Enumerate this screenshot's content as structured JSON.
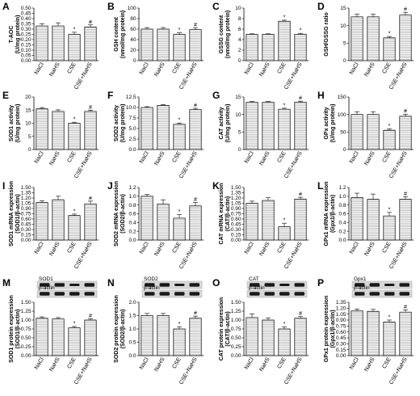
{
  "chart_data": [
    {
      "type": "bar",
      "letter": "A",
      "ylabel": [
        "T-AOC",
        "(U/mg protein)"
      ],
      "categories": [
        "NaCl",
        "NaHS",
        "CSE",
        "CSE+NaHS"
      ],
      "values": [
        0.33,
        0.33,
        0.25,
        0.32
      ],
      "errors": [
        0.02,
        0.03,
        0.02,
        0.02
      ],
      "sig": [
        "",
        "",
        "*",
        "#"
      ],
      "ylim": [
        0,
        0.5
      ],
      "ticks": [
        "0.00",
        "0.05",
        "0.10",
        "0.15",
        "0.20",
        "0.25",
        "0.30",
        "0.35",
        "0.40",
        "0.45",
        "0.50"
      ]
    },
    {
      "type": "bar",
      "letter": "B",
      "ylabel": [
        "GSH content",
        "(nmol/mg protein)"
      ],
      "categories": [
        "NaCl",
        "NaHS",
        "CSE",
        "CSE+NaHS"
      ],
      "values": [
        60,
        60,
        50,
        59
      ],
      "errors": [
        3,
        3,
        3,
        3
      ],
      "sig": [
        "",
        "",
        "*",
        "#"
      ],
      "ylim": [
        0,
        100
      ],
      "ticks": [
        "0",
        "20",
        "40",
        "60",
        "80",
        "100"
      ]
    },
    {
      "type": "bar",
      "letter": "C",
      "ylabel": [
        "GSSG content",
        "(nmol/mg protein)"
      ],
      "categories": [
        "NaCl",
        "NaHS",
        "CSE",
        "CSE+NaHS"
      ],
      "values": [
        5,
        5,
        7.5,
        5
      ],
      "errors": [
        0.1,
        0.1,
        0.2,
        0.2
      ],
      "sig": [
        "",
        "",
        "*",
        "*"
      ],
      "ylim": [
        0,
        10
      ],
      "ticks": [
        "0",
        "2",
        "4",
        "6",
        "8",
        "10"
      ]
    },
    {
      "type": "bar",
      "letter": "D",
      "ylabel": [
        "GSH/GSSG ratio"
      ],
      "categories": [
        "NaCl",
        "NaHS",
        "CSE",
        "CSE+NaHS"
      ],
      "values": [
        12.5,
        12.5,
        6.5,
        13
      ],
      "errors": [
        0.8,
        0.8,
        0.4,
        0.8
      ],
      "sig": [
        "",
        "",
        "*",
        "#"
      ],
      "ylim": [
        0,
        15
      ],
      "ticks": [
        "0",
        "5",
        "10",
        "15"
      ]
    },
    {
      "type": "bar",
      "letter": "E",
      "ylabel": [
        "SOD1 activity",
        "(U/mg protein)"
      ],
      "categories": [
        "NaCl",
        "NaHS",
        "CSE",
        "CSE+NaHS"
      ],
      "values": [
        15.5,
        14.5,
        10,
        14.5
      ],
      "errors": [
        0.5,
        0.6,
        0.4,
        0.5
      ],
      "sig": [
        "",
        "",
        "*",
        "#"
      ],
      "ylim": [
        0,
        20
      ],
      "ticks": [
        "0",
        "5",
        "10",
        "15",
        "20"
      ]
    },
    {
      "type": "bar",
      "letter": "F",
      "ylabel": [
        "SOD2 activity",
        "(U/mg protein)"
      ],
      "categories": [
        "NaCl",
        "NaHS",
        "CSE",
        "CSE+NaHS"
      ],
      "values": [
        10,
        10.5,
        6,
        9.5
      ],
      "errors": [
        0.2,
        0.2,
        0.3,
        0.3
      ],
      "sig": [
        "",
        "",
        "*",
        "#"
      ],
      "ylim": [
        0,
        12.5
      ],
      "ticks": [
        "0.0",
        "2.5",
        "5.0",
        "7.5",
        "10.0",
        "12.5"
      ]
    },
    {
      "type": "bar",
      "letter": "G",
      "ylabel": [
        "CAT activity",
        "(U/mg protein)"
      ],
      "categories": [
        "NaCl",
        "NaHS",
        "CSE",
        "CSE+NaHS"
      ],
      "values": [
        13.5,
        13.5,
        11.5,
        13.5
      ],
      "errors": [
        0.2,
        0.2,
        0.3,
        0.3
      ],
      "sig": [
        "",
        "",
        "*",
        "#"
      ],
      "ylim": [
        0,
        15
      ],
      "ticks": [
        "0",
        "5",
        "10",
        "15"
      ]
    },
    {
      "type": "bar",
      "letter": "H",
      "ylabel": [
        "GPx activity",
        "(U/mg protein)"
      ],
      "categories": [
        "NaCl",
        "NaHS",
        "CSE",
        "CSE+NaHS"
      ],
      "values": [
        100,
        100,
        55,
        95
      ],
      "errors": [
        8,
        8,
        4,
        6
      ],
      "sig": [
        "",
        "",
        "*",
        "#"
      ],
      "ylim": [
        0,
        150
      ],
      "ticks": [
        "0",
        "50",
        "100",
        "150"
      ]
    },
    {
      "type": "bar",
      "letter": "I",
      "ylabel": [
        "SOD1 mRNA expression",
        "(SOD1/β-actin)"
      ],
      "categories": [
        "NaCl",
        "NaHS",
        "CSE",
        "CSE+NaHS"
      ],
      "values": [
        1.07,
        1.15,
        0.7,
        1.03
      ],
      "errors": [
        0.05,
        0.1,
        0.04,
        0.08
      ],
      "sig": [
        "",
        "",
        "*",
        "#"
      ],
      "ylim": [
        0,
        1.5
      ],
      "ticks": [
        "0.00",
        "0.15",
        "0.30",
        "0.45",
        "0.60",
        "0.75",
        "0.90",
        "1.05",
        "1.20",
        "1.35",
        "1.50"
      ]
    },
    {
      "type": "bar",
      "letter": "J",
      "ylabel": [
        "SOD2 mRNA expression",
        "(SOD2/β-actin)"
      ],
      "categories": [
        "NaCl",
        "NaHS",
        "CSE",
        "CSE+NaHS"
      ],
      "values": [
        1.0,
        0.82,
        0.5,
        0.78
      ],
      "errors": [
        0.04,
        0.1,
        0.08,
        0.08
      ],
      "sig": [
        "",
        "",
        "*",
        "#"
      ],
      "ylim": [
        0,
        1.2
      ],
      "ticks": [
        "0.0",
        "0.2",
        "0.4",
        "0.6",
        "0.8",
        "1.0",
        "1.2"
      ]
    },
    {
      "type": "bar",
      "letter": "K",
      "ylabel": [
        "CAT mRNA expression",
        "(CAT/β-actin)"
      ],
      "categories": [
        "NaCl",
        "NaHS",
        "CSE",
        "CSE+NaHS"
      ],
      "values": [
        1.05,
        1.13,
        0.38,
        1.17
      ],
      "errors": [
        0.06,
        0.08,
        0.1,
        0.05
      ],
      "sig": [
        "",
        "",
        "*",
        "#"
      ],
      "ylim": [
        0,
        1.5
      ],
      "ticks": [
        "0.00",
        "0.15",
        "0.30",
        "0.45",
        "0.60",
        "0.75",
        "0.90",
        "1.05",
        "1.20",
        "1.35",
        "1.50"
      ]
    },
    {
      "type": "bar",
      "letter": "L",
      "ylabel": [
        "GPx1 mRNA expression",
        "(Gpx1/β-actin)"
      ],
      "categories": [
        "NaCl",
        "NaHS",
        "CSE",
        "CSE+NaHS"
      ],
      "values": [
        0.97,
        0.93,
        0.55,
        0.93
      ],
      "errors": [
        0.1,
        0.12,
        0.08,
        0.06
      ],
      "sig": [
        "",
        "",
        "*",
        "#"
      ],
      "ylim": [
        0,
        1.2
      ],
      "ticks": [
        "0.0",
        "0.2",
        "0.4",
        "0.6",
        "0.8",
        "1.0",
        "1.2"
      ]
    },
    {
      "type": "bar",
      "letter": "M",
      "ylabel": [
        "SOD1 protein expression",
        "(SOD1/β-actin)"
      ],
      "blot": [
        "SOD1",
        "β-actin"
      ],
      "categories": [
        "NaCl",
        "NaHS",
        "CSE",
        "CSE+NaHS"
      ],
      "values": [
        1.05,
        1.03,
        0.78,
        1.0
      ],
      "errors": [
        0.04,
        0.04,
        0.04,
        0.03
      ],
      "sig": [
        "",
        "",
        "*",
        "#"
      ],
      "ylim": [
        0,
        1.5
      ],
      "ticks": [
        "0.00",
        "0.25",
        "0.50",
        "0.75",
        "1.00",
        "1.25",
        "1.50"
      ]
    },
    {
      "type": "bar",
      "letter": "N",
      "ylabel": [
        "SOD2 protein expression",
        "(SOD2/β-actin)"
      ],
      "blot": [
        "SOD2",
        "β-actin"
      ],
      "categories": [
        "NaCl",
        "NaHS",
        "CSE",
        "CSE+NaHS"
      ],
      "values": [
        1.5,
        1.5,
        1.0,
        1.4
      ],
      "errors": [
        0.08,
        0.08,
        0.08,
        0.08
      ],
      "sig": [
        "",
        "",
        "*",
        "#"
      ],
      "ylim": [
        0,
        2.0
      ],
      "ticks": [
        "0.0",
        "0.5",
        "1.0",
        "1.5",
        "2.0"
      ]
    },
    {
      "type": "bar",
      "letter": "O",
      "ylabel": [
        "CAT protein expression",
        "(CAT/β-actin)"
      ],
      "blot": [
        "CAT",
        "β-actin"
      ],
      "categories": [
        "NaCl",
        "NaHS",
        "CSE",
        "CSE+NaHS"
      ],
      "values": [
        1.07,
        1.0,
        0.75,
        1.05
      ],
      "errors": [
        0.1,
        0.06,
        0.06,
        0.05
      ],
      "sig": [
        "",
        "",
        "*",
        "#"
      ],
      "ylim": [
        0,
        1.5
      ],
      "ticks": [
        "0.00",
        "0.25",
        "0.50",
        "0.75",
        "1.00",
        "1.25",
        "1.50"
      ]
    },
    {
      "type": "bar",
      "letter": "P",
      "ylabel": [
        "GPx1 protein expression",
        "(Gpx1/β-actin)"
      ],
      "blot": [
        "Gpx1",
        "β-actin"
      ],
      "categories": [
        "NaCl",
        "NaHS",
        "CSE",
        "CSE+NaHS"
      ],
      "values": [
        1.13,
        1.12,
        0.85,
        1.1
      ],
      "errors": [
        0.05,
        0.05,
        0.05,
        0.06
      ],
      "sig": [
        "",
        "",
        "*",
        "#"
      ],
      "ylim": [
        0,
        1.35
      ],
      "ticks": [
        "0.00",
        "0.15",
        "0.30",
        "0.45",
        "0.60",
        "0.75",
        "0.90",
        "1.05",
        "1.20",
        "1.35"
      ]
    }
  ]
}
